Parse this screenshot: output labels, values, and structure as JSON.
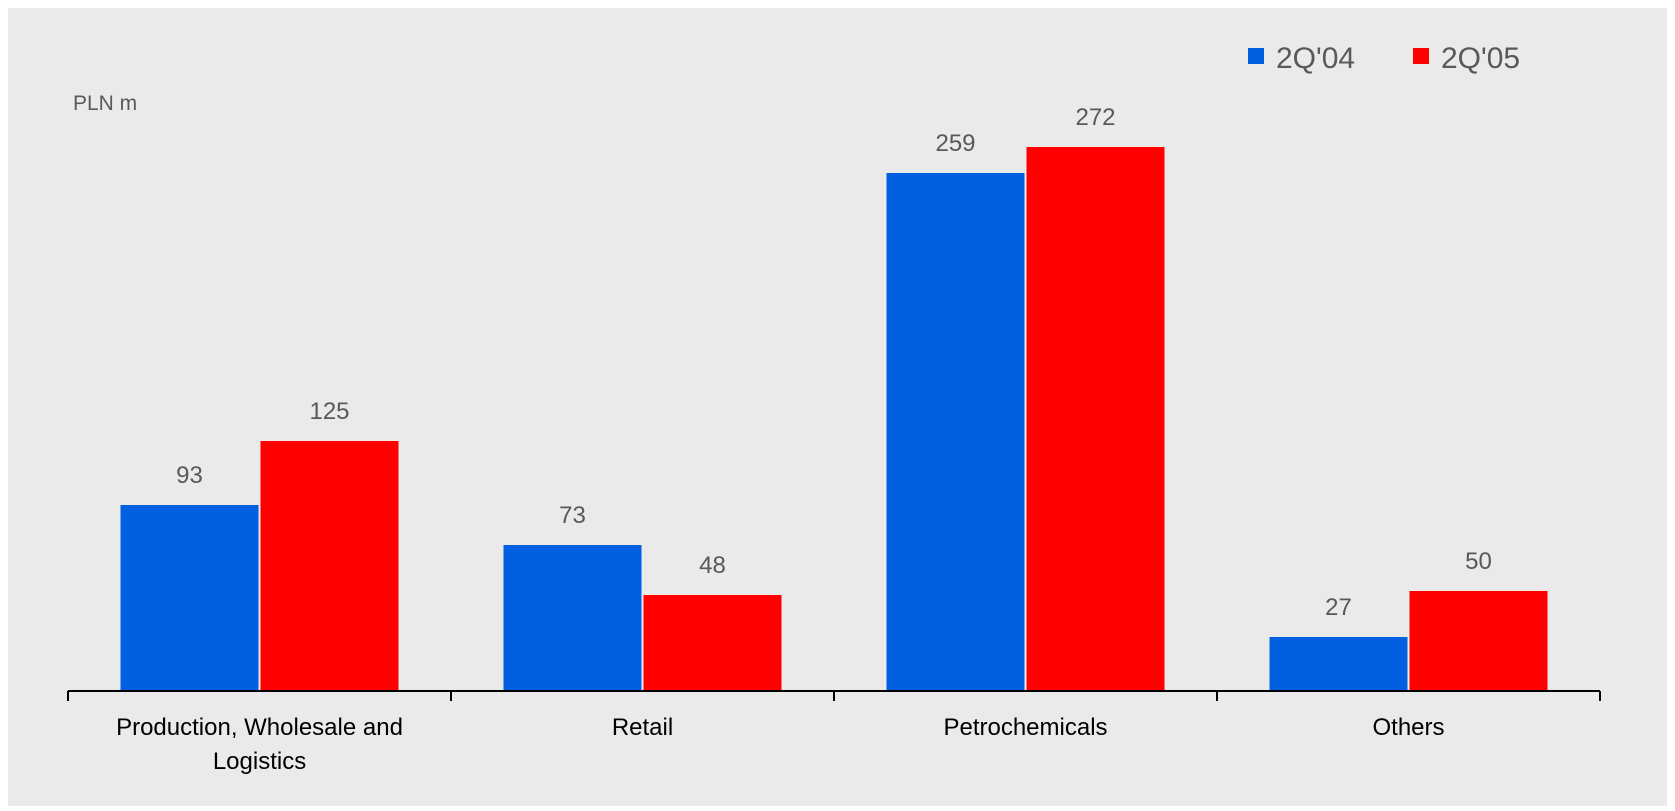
{
  "chart_data": {
    "type": "bar",
    "unit_label": "PLN m",
    "categories": [
      [
        "Production, Wholesale and",
        "Logistics"
      ],
      [
        "Retail"
      ],
      [
        "Petrochemicals"
      ],
      [
        "Others"
      ]
    ],
    "series": [
      {
        "name": "2Q'04",
        "color": "#0060E0",
        "values": [
          93,
          73,
          259,
          27
        ]
      },
      {
        "name": "2Q'05",
        "color": "#FF0000",
        "values": [
          125,
          48,
          272,
          50
        ]
      }
    ],
    "ylim": [
      0,
      300
    ],
    "grid": false,
    "legend_position": "top-right",
    "background_color": "#EAEAEA",
    "axis_color": "#000000"
  }
}
